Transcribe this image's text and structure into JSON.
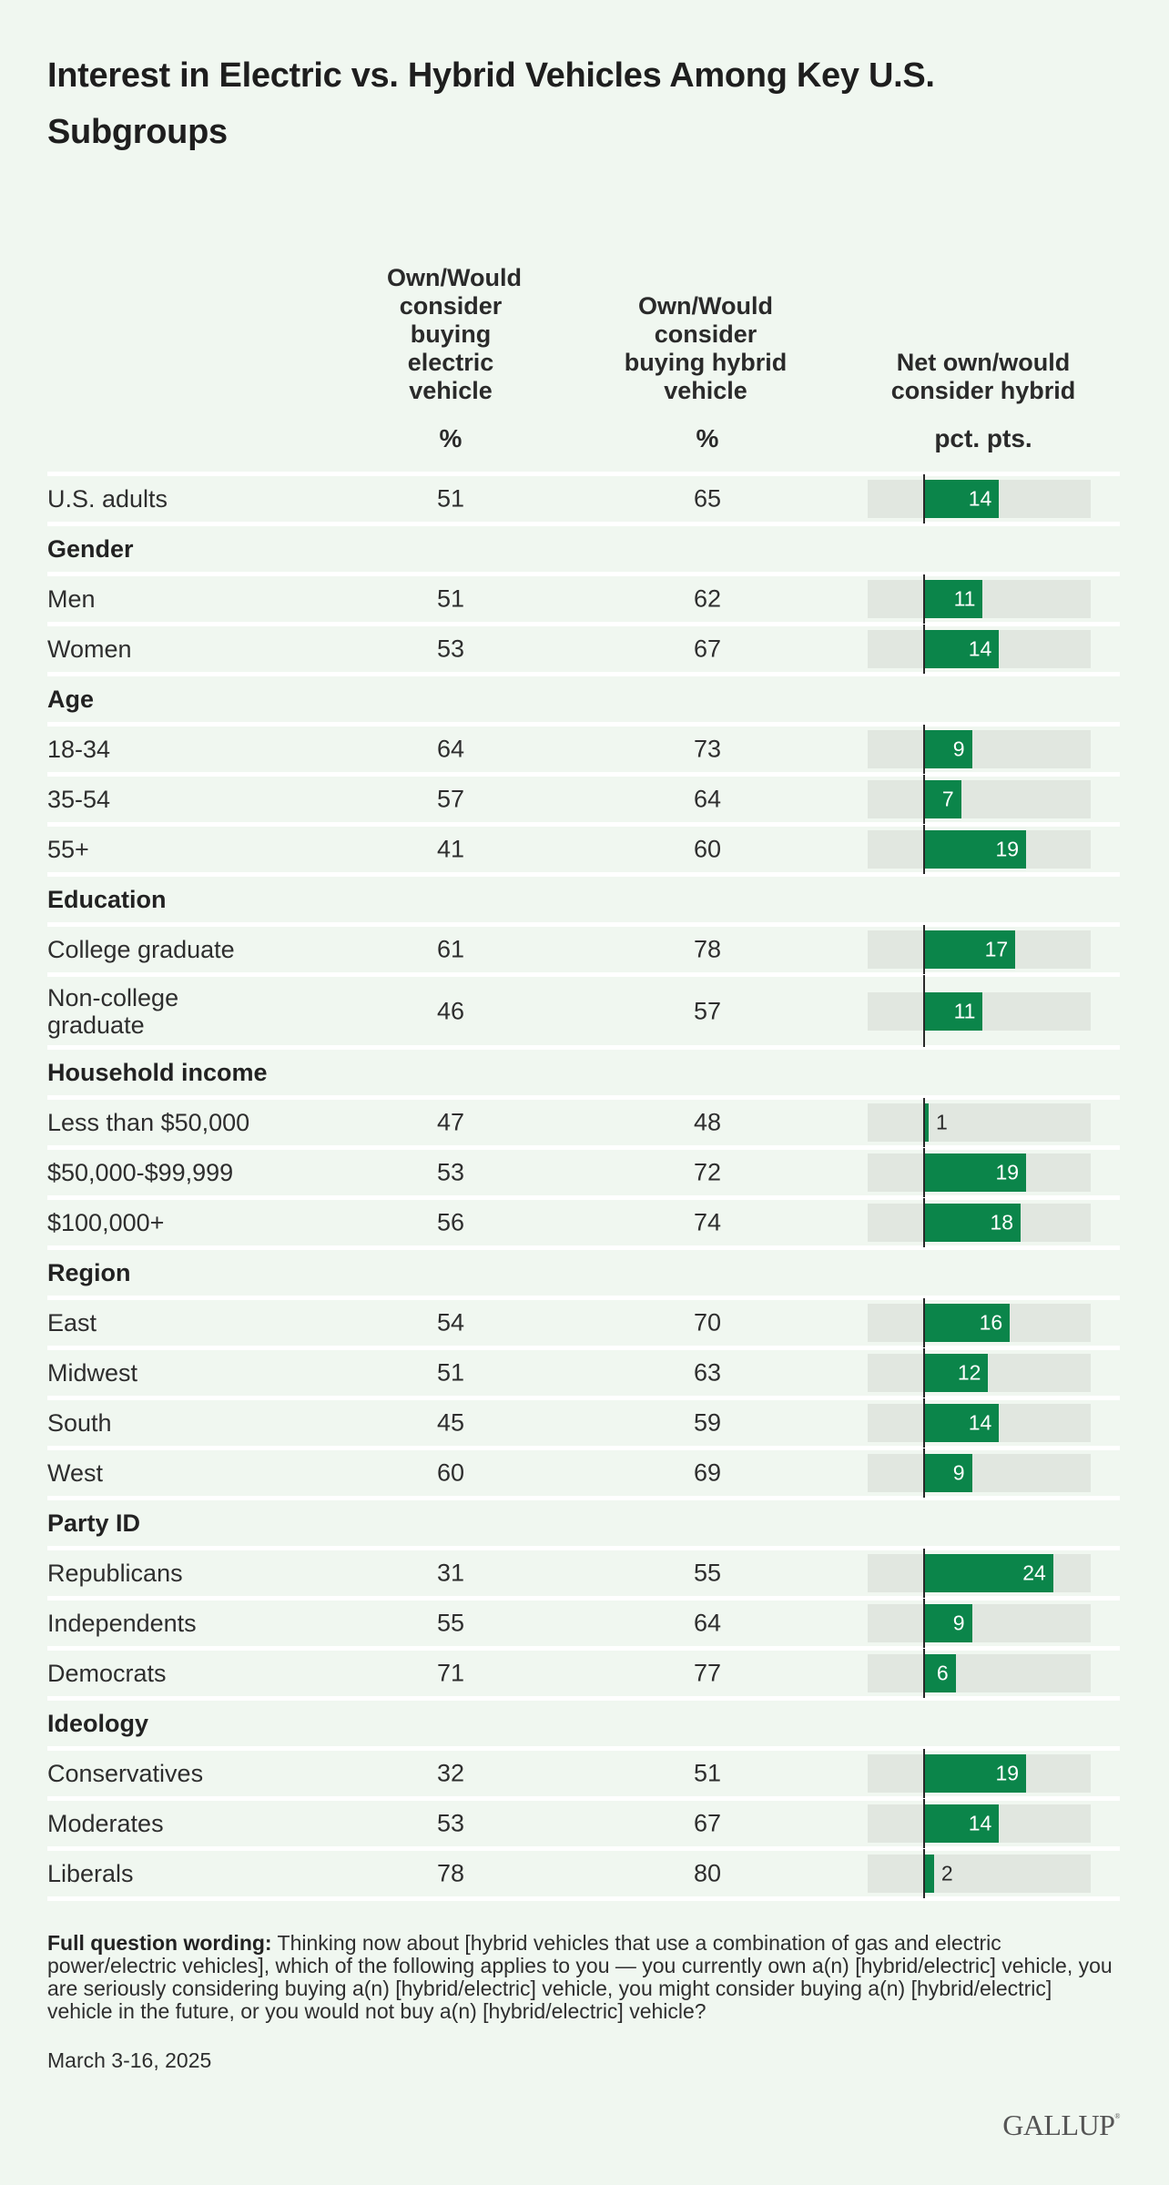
{
  "title": "Interest in Electric vs. Hybrid Vehicles Among Key U.S. Subgroups",
  "columns": {
    "electric": {
      "header": [
        "Own/Would",
        "consider",
        "buying",
        "electric",
        "vehicle"
      ],
      "unit": "%"
    },
    "hybrid": {
      "header": [
        "Own/Would",
        "consider",
        "buying hybrid",
        "vehicle"
      ],
      "unit": "%"
    },
    "net": {
      "header": [
        "Net own/would",
        "consider hybrid"
      ],
      "unit": "pct. pts."
    }
  },
  "colors": {
    "background": "#f0f7f0",
    "bar": "#0b854a",
    "track": "#e1e7e0",
    "separator": "#ffffff"
  },
  "chart_data": {
    "type": "table",
    "title": "Interest in Electric vs. Hybrid Vehicles Among Key U.S. Subgroups",
    "series_names": [
      "Own/Would consider buying electric vehicle (%)",
      "Own/Would consider buying hybrid vehicle (%)",
      "Net own/would consider hybrid (pct. pts.)"
    ],
    "net_axis_range": [
      -6,
      35
    ],
    "rows": [
      {
        "type": "data",
        "label": "U.S. adults",
        "electric": 51,
        "hybrid": 65,
        "net": 14
      },
      {
        "type": "group",
        "label": "Gender"
      },
      {
        "type": "data",
        "label": "Men",
        "electric": 51,
        "hybrid": 62,
        "net": 11
      },
      {
        "type": "data",
        "label": "Women",
        "electric": 53,
        "hybrid": 67,
        "net": 14
      },
      {
        "type": "group",
        "label": "Age"
      },
      {
        "type": "data",
        "label": "18-34",
        "electric": 64,
        "hybrid": 73,
        "net": 9
      },
      {
        "type": "data",
        "label": "35-54",
        "electric": 57,
        "hybrid": 64,
        "net": 7
      },
      {
        "type": "data",
        "label": "55+",
        "electric": 41,
        "hybrid": 60,
        "net": 19
      },
      {
        "type": "group",
        "label": "Education"
      },
      {
        "type": "data",
        "label": "College graduate",
        "electric": 61,
        "hybrid": 78,
        "net": 17
      },
      {
        "type": "data",
        "label": "Non-college graduate",
        "label_lines": [
          "Non-college",
          "graduate"
        ],
        "electric": 46,
        "hybrid": 57,
        "net": 11
      },
      {
        "type": "group",
        "label": "Household income"
      },
      {
        "type": "data",
        "label": "Less than $50,000",
        "electric": 47,
        "hybrid": 48,
        "net": 1
      },
      {
        "type": "data",
        "label": "$50,000-$99,999",
        "electric": 53,
        "hybrid": 72,
        "net": 19
      },
      {
        "type": "data",
        "label": "$100,000+",
        "electric": 56,
        "hybrid": 74,
        "net": 18
      },
      {
        "type": "group",
        "label": "Region"
      },
      {
        "type": "data",
        "label": "East",
        "electric": 54,
        "hybrid": 70,
        "net": 16
      },
      {
        "type": "data",
        "label": "Midwest",
        "electric": 51,
        "hybrid": 63,
        "net": 12
      },
      {
        "type": "data",
        "label": "South",
        "electric": 45,
        "hybrid": 59,
        "net": 14
      },
      {
        "type": "data",
        "label": "West",
        "electric": 60,
        "hybrid": 69,
        "net": 9
      },
      {
        "type": "group",
        "label": "Party ID"
      },
      {
        "type": "data",
        "label": "Republicans",
        "electric": 31,
        "hybrid": 55,
        "net": 24
      },
      {
        "type": "data",
        "label": "Independents",
        "electric": 55,
        "hybrid": 64,
        "net": 9
      },
      {
        "type": "data",
        "label": "Democrats",
        "electric": 71,
        "hybrid": 77,
        "net": 6
      },
      {
        "type": "group",
        "label": "Ideology"
      },
      {
        "type": "data",
        "label": "Conservatives",
        "electric": 32,
        "hybrid": 51,
        "net": 19
      },
      {
        "type": "data",
        "label": "Moderates",
        "electric": 53,
        "hybrid": 67,
        "net": 14
      },
      {
        "type": "data",
        "label": "Liberals",
        "electric": 78,
        "hybrid": 80,
        "net": 2
      }
    ]
  },
  "footer": {
    "question_label": "Full question wording:",
    "question_text": " Thinking now about [hybrid vehicles that use a combination of gas and electric power/electric vehicles], which of the following applies to you — you currently own a(n) [hybrid/electric] vehicle, you are seriously considering buying a(n) [hybrid/electric] vehicle, you might consider buying a(n) [hybrid/electric] vehicle in the future, or you would not buy a(n) [hybrid/electric] vehicle?",
    "date": "March 3-16, 2025",
    "logo": "GALLUP"
  }
}
